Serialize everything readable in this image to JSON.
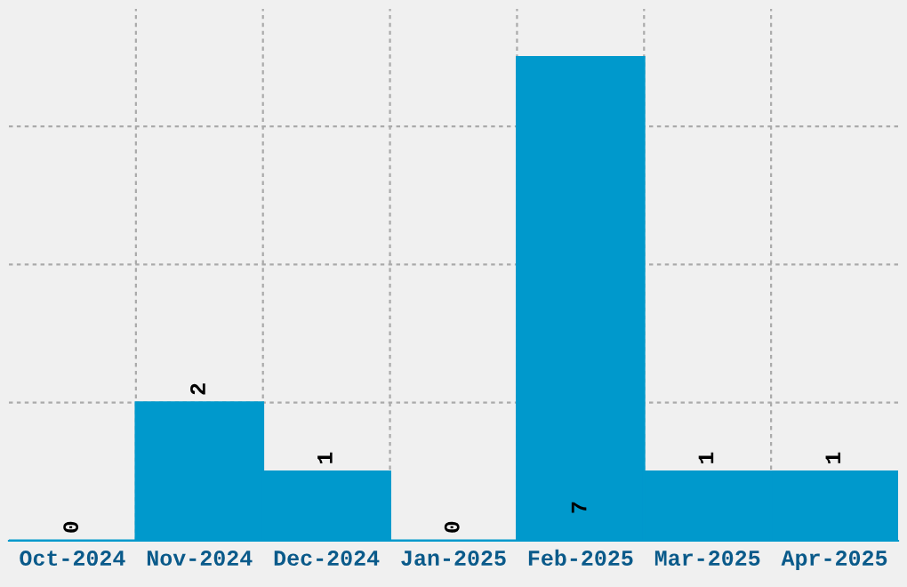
{
  "chart_data": {
    "type": "bar",
    "categories": [
      "Oct-2024",
      "Nov-2024",
      "Dec-2024",
      "Jan-2025",
      "Feb-2025",
      "Mar-2025",
      "Apr-2025"
    ],
    "values": [
      0,
      2,
      1,
      0,
      7,
      1,
      1
    ],
    "color": "#0099cc",
    "ylim": [
      0,
      7.7
    ],
    "yticks": [
      {
        "value": 2,
        "label": null
      },
      {
        "value": 4,
        "label": null
      },
      {
        "value": 6,
        "label": null
      }
    ],
    "tick_labels": "x",
    "grid": true,
    "data_labels": true
  }
}
